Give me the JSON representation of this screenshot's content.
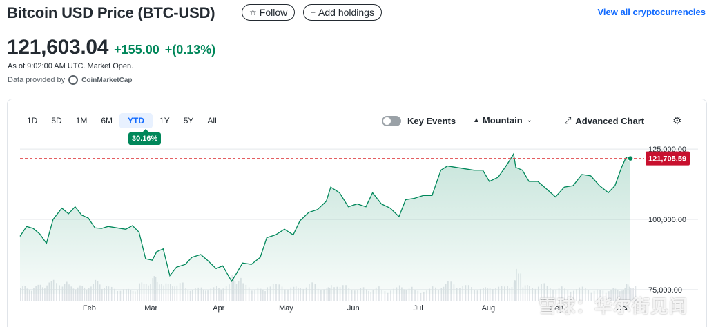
{
  "header": {
    "title": "Bitcoin USD Price (BTC-USD)",
    "follow_label": "Follow",
    "add_holdings_label": "Add holdings",
    "view_all_label": "View all cryptocurrencies"
  },
  "quote": {
    "price": "121,603.04",
    "change": "+155.00",
    "change_percent": "+(0.13%)",
    "as_of": "As of 9:02:00 AM UTC. Market Open.",
    "provided_by": "Data provided by",
    "provider_name": "CoinMarketCap",
    "up_color": "#00875a"
  },
  "chart_controls": {
    "ranges": [
      "1D",
      "5D",
      "1M",
      "6M",
      "YTD",
      "1Y",
      "5Y",
      "All"
    ],
    "selected_range": "YTD",
    "range_change": "30.16%",
    "key_events_label": "Key Events",
    "key_events_on": false,
    "chart_type_label": "Mountain",
    "advanced_chart_label": "Advanced Chart"
  },
  "chart_data": {
    "type": "area",
    "title": "",
    "xlabel": "",
    "ylabel": "",
    "x_ticks": [
      "Feb",
      "Mar",
      "Apr",
      "May",
      "Jun",
      "Jul",
      "Aug",
      "Sep",
      "Oct"
    ],
    "y_ticks": [
      "125,000.00",
      "100,000.00",
      "75,000.00"
    ],
    "y_tick_values": [
      125000,
      100000,
      75000
    ],
    "ylim": [
      73500,
      127500
    ],
    "x_range": [
      "2025-01-01",
      "2025-10-05"
    ],
    "last_price_label": "121,705.59",
    "last_price": 121705.59,
    "line_color": "#00875a",
    "reference_line_color": "#e0474c",
    "grid": true,
    "series": [
      {
        "x": [
          "2025-01-01",
          "2025-01-04",
          "2025-01-07",
          "2025-01-10",
          "2025-01-13",
          "2025-01-16",
          "2025-01-20",
          "2025-01-23",
          "2025-01-26",
          "2025-01-29",
          "2025-02-01",
          "2025-02-04",
          "2025-02-07",
          "2025-02-10",
          "2025-02-14",
          "2025-02-18",
          "2025-02-21",
          "2025-02-24",
          "2025-02-27",
          "2025-03-02",
          "2025-03-04",
          "2025-03-07",
          "2025-03-10",
          "2025-03-13",
          "2025-03-17",
          "2025-03-20",
          "2025-03-24",
          "2025-03-27",
          "2025-03-31",
          "2025-04-03",
          "2025-04-07",
          "2025-04-09",
          "2025-04-12",
          "2025-04-16",
          "2025-04-20",
          "2025-04-23",
          "2025-04-27",
          "2025-05-01",
          "2025-05-05",
          "2025-05-08",
          "2025-05-12",
          "2025-05-16",
          "2025-05-20",
          "2025-05-22",
          "2025-05-26",
          "2025-05-30",
          "2025-06-03",
          "2025-06-07",
          "2025-06-10",
          "2025-06-14",
          "2025-06-18",
          "2025-06-22",
          "2025-06-25",
          "2025-06-29",
          "2025-07-03",
          "2025-07-07",
          "2025-07-11",
          "2025-07-14",
          "2025-07-18",
          "2025-07-22",
          "2025-07-26",
          "2025-07-30",
          "2025-08-02",
          "2025-08-06",
          "2025-08-10",
          "2025-08-13",
          "2025-08-14",
          "2025-08-17",
          "2025-08-20",
          "2025-08-24",
          "2025-08-28",
          "2025-09-01",
          "2025-09-05",
          "2025-09-09",
          "2025-09-13",
          "2025-09-17",
          "2025-09-21",
          "2025-09-25",
          "2025-09-28",
          "2025-10-01",
          "2025-10-03",
          "2025-10-05"
        ],
        "y": [
          94000,
          97500,
          96800,
          94800,
          91500,
          100000,
          104000,
          102000,
          104500,
          101500,
          100500,
          97000,
          96800,
          97500,
          97000,
          96500,
          97800,
          95500,
          86000,
          85500,
          88500,
          89500,
          80000,
          83000,
          84000,
          86500,
          87500,
          85500,
          82500,
          83500,
          78000,
          80500,
          84500,
          84000,
          86500,
          93500,
          94500,
          96500,
          94500,
          99500,
          102500,
          103500,
          106500,
          111500,
          109500,
          104500,
          105500,
          104500,
          109500,
          105500,
          104000,
          101000,
          107000,
          107500,
          108500,
          108500,
          117500,
          119000,
          118500,
          118000,
          117500,
          117500,
          113500,
          115000,
          119500,
          123300,
          118500,
          117500,
          113500,
          113500,
          110800,
          108000,
          111500,
          112000,
          116000,
          115500,
          112000,
          109500,
          112000,
          118500,
          122000,
          121705.59
        ],
        "volume": [
          0.38,
          0.35,
          0.4,
          0.44,
          0.5,
          0.55,
          0.48,
          0.42,
          0.4,
          0.37,
          0.45,
          0.52,
          0.42,
          0.36,
          0.34,
          0.3,
          0.33,
          0.46,
          0.55,
          0.62,
          0.58,
          0.44,
          0.5,
          0.46,
          0.35,
          0.33,
          0.36,
          0.34,
          0.38,
          0.42,
          0.66,
          0.6,
          0.44,
          0.36,
          0.3,
          0.48,
          0.42,
          0.4,
          0.36,
          0.42,
          0.46,
          0.38,
          0.34,
          0.48,
          0.4,
          0.36,
          0.34,
          0.32,
          0.36,
          0.3,
          0.34,
          0.4,
          0.36,
          0.28,
          0.32,
          0.36,
          0.46,
          0.5,
          0.44,
          0.4,
          0.36,
          0.34,
          0.42,
          0.38,
          0.46,
          0.52,
          0.95,
          0.4,
          0.42,
          0.44,
          0.4,
          0.36,
          0.32,
          0.34,
          0.36,
          0.3,
          0.28,
          0.34,
          0.3,
          0.36,
          0.42,
          0.45
        ]
      }
    ]
  },
  "watermark": "雪球：华尔街见闻"
}
